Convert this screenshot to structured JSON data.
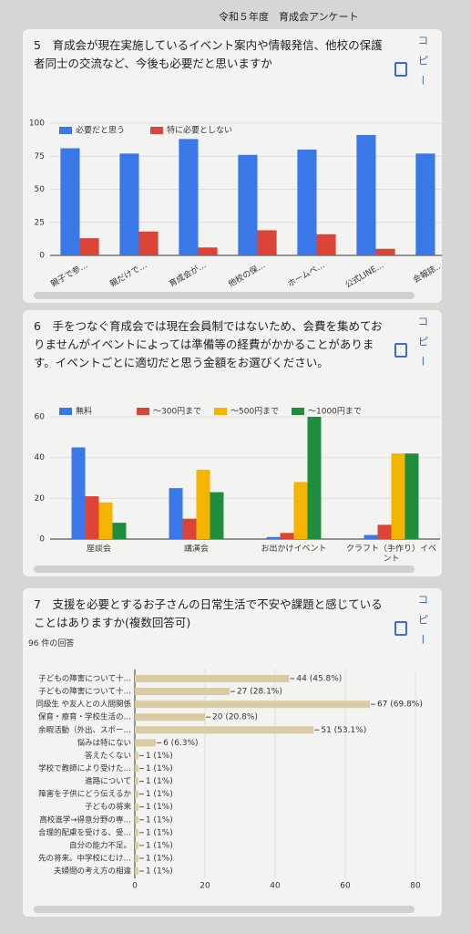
{
  "page_title": "令和５年度　育成会アンケート",
  "chart_data": [
    {
      "type": "bar",
      "title": "5　育成会が現在実施しているイベント案内や情報発信、他校の保護者同士の交流など、今後も必要だと思いますか",
      "button": "コピー",
      "categories": [
        "親子で参…",
        "親だけで…",
        "育成会が…",
        "他校の保…",
        "ホームペ…",
        "公式LINE…",
        "会報誌…"
      ],
      "series": [
        {
          "name": "必要だと思う",
          "color": "#3b78e7",
          "values": [
            81,
            77,
            88,
            76,
            80,
            91,
            77
          ]
        },
        {
          "name": "特に必要としない",
          "color": "#db4437",
          "values": [
            13,
            18,
            6,
            19,
            16,
            5,
            null
          ]
        }
      ],
      "ylim": [
        0,
        100
      ],
      "yticks": [
        0,
        25,
        50,
        75,
        100
      ],
      "grid": true,
      "legend": "top"
    },
    {
      "type": "bar",
      "title": "6　手をつなぐ育成会では現在会員制ではないため、会費を集めておりませんがイベントによっては準備等の経費がかかることがあります。イベントごとに適切だと思う金額をお選びください。",
      "button": "コピー",
      "categories": [
        "座談会",
        "講演会",
        "お出かけイベント",
        "クラフト（手作り）イベント"
      ],
      "series": [
        {
          "name": "無料",
          "color": "#3b78e7",
          "values": [
            45,
            25,
            1,
            2
          ]
        },
        {
          "name": "～300円まで",
          "color": "#db4437",
          "values": [
            21,
            10,
            3,
            7
          ]
        },
        {
          "name": "～500円まで",
          "color": "#f4b400",
          "values": [
            18,
            34,
            28,
            42
          ]
        },
        {
          "name": "～1000円まで",
          "color": "#1e8e3e",
          "values": [
            8,
            23,
            60,
            42
          ]
        }
      ],
      "ylim": [
        0,
        60
      ],
      "yticks": [
        0,
        20,
        40,
        60
      ],
      "grid": true,
      "legend": "top"
    },
    {
      "type": "barh",
      "title": "7　支援を必要とするお子さんの日常生活で不安や課題と感じていることはありますか(複数回答可)",
      "button": "コピー",
      "subtitle": "96 件の回答",
      "categories": [
        "子どもの障害について十…",
        "子どもの障害について十…",
        "同級生 や友人との人間関係",
        "保育・療育・学校生活の…",
        "余暇活動（外出、スポー…",
        "悩みは特にない",
        "答えたくない",
        "学校で教師により受けた…",
        "進路について",
        "障害を子供にどう伝えるか",
        "子どもの将来",
        "高校進学→得意分野の専…",
        "合理的配慮を受ける、受…",
        "自分の能力不足。",
        "先の将来。中学校にむけ…",
        "夫婦間の考え方の相違"
      ],
      "values": [
        44,
        27,
        67,
        20,
        51,
        6,
        1,
        1,
        1,
        1,
        1,
        1,
        1,
        1,
        1,
        1
      ],
      "value_labels": [
        "44 (45.8%)",
        "27 (28.1%)",
        "67 (69.8%)",
        "20 (20.8%)",
        "51 (53.1%)",
        "6 (6.3%)",
        "1 (1%)",
        "1 (1%)",
        "1 (1%)",
        "1 (1%)",
        "1 (1%)",
        "1 (1%)",
        "1 (1%)",
        "1 (1%)",
        "1 (1%)",
        "1 (1%)"
      ],
      "color": "#d9cba3",
      "xlim": [
        0,
        80
      ],
      "xticks": [
        0,
        20,
        40,
        60,
        80
      ],
      "grid": true
    }
  ]
}
